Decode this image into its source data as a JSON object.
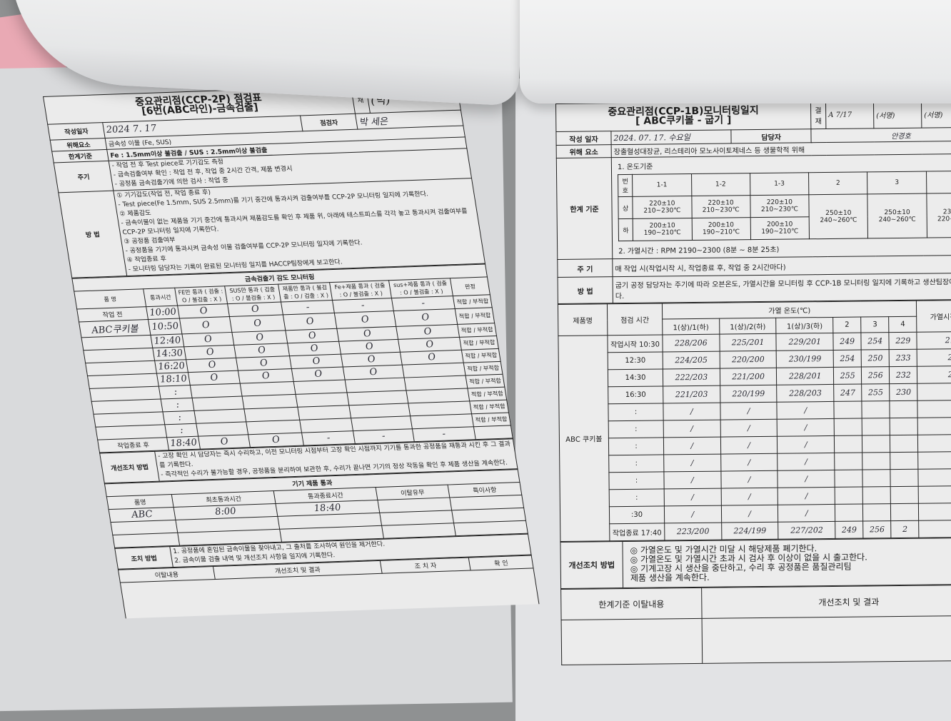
{
  "left_doc": {
    "title_line1": "중요관리점(CCP-2P) 점검표",
    "title_line2": "[6번(ABC라인)-금속검출]",
    "approval_label": "재",
    "approval_sign": "(박)",
    "date_label": "작성일자",
    "date_value": "2024  7. 17",
    "inspector_label": "점검자",
    "inspector_value": "박 세은",
    "hazard_label": "위해요소",
    "hazard_value": "금속성 이물 (Fe, SUS)",
    "limit_label": "한계기준",
    "limit_value": "Fe : 1.5mm이상 불검출 / SUS : 2.5mm이상 불검출",
    "cycle_label": "주기",
    "cycle_lines": [
      "- 작업 전 후 Test piece로 기기감도 측정",
      "- 금속검출여부 확인 : 작업 전 후, 작업 중 2시간 간격, 제품 변경시",
      "- 공정품 금속검출기에 의한 검사 : 작업 중"
    ],
    "method_label": "방 법",
    "method_lines": [
      "① 기기감도(작업 전, 작업 종료 후)",
      "- Test piece(Fe 1.5mm, SUS 2.5mm)를 기기 중간에 통과시켜 검출여부를 CCP-2P 모니터링 일지에 기록한다.",
      "② 제품감도",
      "- 금속이물이 없는 제품을 기기 중간에 통과시켜 제품감도를 확인 후 제품 위, 아래에 테스트피스를 각각 놓고 통과시켜 검출여부를 CCP-2P 모니터링 일지에 기록한다.",
      "③ 공정품 검출여부",
      "- 공정품을 기기에 통과시켜 금속성 이물 검출여부를 CCP-2P 모니터링 일지에 기록한다.",
      "④ 작업종료 후",
      "- 모니터링 담당자는 기록이 완료된 모니터링 일지를 HACCP팀장에게 보고한다."
    ],
    "monitor_title": "금속검출기 감도 모니터링",
    "monitor_headers": [
      "품 명",
      "통과시간",
      "FE만 통과 ( 검출 : O / 불검출 : X )",
      "SUS만 통과 ( 검출 : O / 불검출 : X )",
      "제품만 통과 ( 불검출 : O / 검출 : X )",
      "Fe+제품 통과 ( 검출 : O / 불검출 : X )",
      "sus+제품 통과 ( 검출 : O / 불검출 : X )",
      "판정"
    ],
    "monitor_rows": [
      [
        "작업 전",
        "10:00",
        "O",
        "O",
        "-",
        "-",
        "-",
        "적합 / 부적합"
      ],
      [
        "ABC쿠키볼",
        "10:50",
        "O",
        "O",
        "O",
        "O",
        "O",
        "적합 / 부적합"
      ],
      [
        "",
        "12:40",
        "O",
        "O",
        "O",
        "O",
        "O",
        "적합 / 부적합"
      ],
      [
        "",
        "14:30",
        "O",
        "O",
        "O",
        "O",
        "O",
        "적합 / 부적합"
      ],
      [
        "",
        "16:20",
        "O",
        "O",
        "O",
        "O",
        "O",
        "적합 / 부적합"
      ],
      [
        "",
        "18:10",
        "O",
        "O",
        "O",
        "O",
        "",
        "적합 / 부적합"
      ],
      [
        "",
        ":",
        "",
        "",
        "",
        "",
        "",
        "적합 / 부적합"
      ],
      [
        "",
        ":",
        "",
        "",
        "",
        "",
        "",
        "적합 / 부적합"
      ],
      [
        "",
        ":",
        "",
        "",
        "",
        "",
        "",
        "적합 / 부적합"
      ],
      [
        "",
        ":",
        "",
        "",
        "",
        "",
        "",
        "적합 / 부적합"
      ],
      [
        "작업종료 후",
        "18:40",
        "O",
        "O",
        "-",
        "-",
        "-",
        ""
      ]
    ],
    "corrective_label": "개선조치 방법",
    "corrective_lines": [
      "- 고장 확인 시 담당자는 즉시 수리하고, 이전 모니터링 시점부터 고장 확인 시점까지 기기를 통과한 공정품을 재통과 시킨 후 그 결과를 기록한다.",
      "- 즉각적인 수리가 불가능할 경우, 공정품을 분리하여 보관한 후, 수리가 끝나면 기기의 정상 작동을 확인 후 제품 생산을 계속한다."
    ],
    "pass_title": "기기 제품 통과",
    "pass_headers": [
      "품명",
      "최초통과시간",
      "통과종료시간",
      "이탈유무",
      "특이사항"
    ],
    "pass_rows": [
      [
        "ABC",
        "8:00",
        "18:40",
        "",
        ""
      ],
      [
        "",
        "",
        "",
        "",
        ""
      ],
      [
        "",
        "",
        "",
        "",
        ""
      ]
    ],
    "action_label": "조치 방법",
    "action_lines": [
      "1. 공정품에 혼입된 금속이물을 찾아내고, 그 출처를 조사하여 원인을 제거한다.",
      "2. 금속이물 검출 내역 및 개선조치 사항을 일지에 기록한다."
    ],
    "deviation_headers": [
      "이탈내용",
      "개선조치 및 결과",
      "조 치 자",
      "확 인"
    ]
  },
  "right_doc": {
    "title_line1": "중요관리점(CCP-1B)모니터링일지",
    "title_line2": "[   ABC쿠키볼 - 굽기 ]",
    "approval_label": "결재",
    "approval_signs": [
      "A 7/17",
      "(서명)",
      "(서명)"
    ],
    "date_label": "작성 일자",
    "date_value": "2024. 07. 17. 수요일",
    "manager_label": "담당자",
    "manager_value": "안경호",
    "hazard_label": "위해 요소",
    "hazard_value": "장출혈성대장균, 리스테리아 모노사이토제네스 등 생물학적 위해",
    "limit_label": "한계 기준",
    "temp_title": "1. 온도기준",
    "temp_headers": [
      "번호",
      "1-1",
      "1-2",
      "1-3",
      "2",
      "3",
      "4"
    ],
    "temp_upper_label": "상",
    "temp_lower_label": "하",
    "temp_upper": [
      "220±10 210~230℃",
      "220±10 210~230℃",
      "220±10 210~230℃"
    ],
    "temp_lower": [
      "200±10 190~210℃",
      "200±10 190~210℃",
      "200±10 190~210℃"
    ],
    "temp_single": [
      "250±10 240~260℃",
      "250±10 240~260℃",
      "230±10 220~250℃"
    ],
    "heat_time": "2. 가열시간 : RPM 2190~2300 (8분 ~ 8분 25초)",
    "cycle_label": "주 기",
    "cycle_value": "매 작업 시(작업시작 시, 작업종료 후, 작업 중 2시간마다)",
    "method_label": "방 법",
    "method_value": "굽기 공정 담당자는 주기에 따라 오븐온도, 가열시간을 모니터링 후 CCP-1B 모니터링 일지에 기록하고 생산팀장에게 보고한다.",
    "log_headers": {
      "product": "제품명",
      "time": "점검 시간",
      "temp_group": "가열 온도(℃)",
      "temp_cols": [
        "1(상)/1(하)",
        "1(상)/2(하)",
        "1(상)/3(하)",
        "2",
        "3",
        "4"
      ],
      "heat": "가열시간 (RPM)"
    },
    "product_name": "ABC 쿠키볼",
    "log_rows": [
      [
        "작업시작 10:30",
        "228/206",
        "225/201",
        "229/201",
        "249",
        "254",
        "229",
        "2190"
      ],
      [
        "12:30",
        "224/205",
        "220/200",
        "230/199",
        "254",
        "250",
        "233",
        "219"
      ],
      [
        "14:30",
        "222/203",
        "221/200",
        "228/201",
        "255",
        "256",
        "232",
        "219"
      ],
      [
        "16:30",
        "221/203",
        "220/199",
        "228/203",
        "247",
        "255",
        "230",
        "2"
      ],
      [
        ":",
        "/",
        "/",
        "/",
        "",
        "",
        "",
        ""
      ],
      [
        ":",
        "/",
        "/",
        "/",
        "",
        "",
        "",
        ""
      ],
      [
        ":",
        "/",
        "/",
        "/",
        "",
        "",
        "",
        ""
      ],
      [
        ":",
        "/",
        "/",
        "/",
        "",
        "",
        "",
        ""
      ],
      [
        ":",
        "/",
        "/",
        "/",
        "",
        "",
        "",
        ""
      ],
      [
        ":",
        "/",
        "/",
        "/",
        "",
        "",
        "",
        ""
      ],
      [
        ":30",
        "/",
        "/",
        "/",
        "",
        "",
        "",
        ""
      ],
      [
        "작업종료 17:40",
        "223/200",
        "224/199",
        "227/202",
        "249",
        "256",
        "2",
        ""
      ]
    ],
    "corrective_label": "개선조치 방법",
    "corrective_lines": [
      "◎ 가열온도 및 가열시간 미달 시 해당제품 폐기한다.",
      "◎ 가열온도 및 가열시간 초과 시 검사 후 이상이 없을 시 출고한다.",
      "◎ 기계고장 시 생산을 중단하고, 수리 후 공정품은 품질관리팀",
      "   제품 생산을 계속한다."
    ],
    "deviation_headers": [
      "한계기준 이탈내용",
      "개선조치 및 결과"
    ]
  }
}
